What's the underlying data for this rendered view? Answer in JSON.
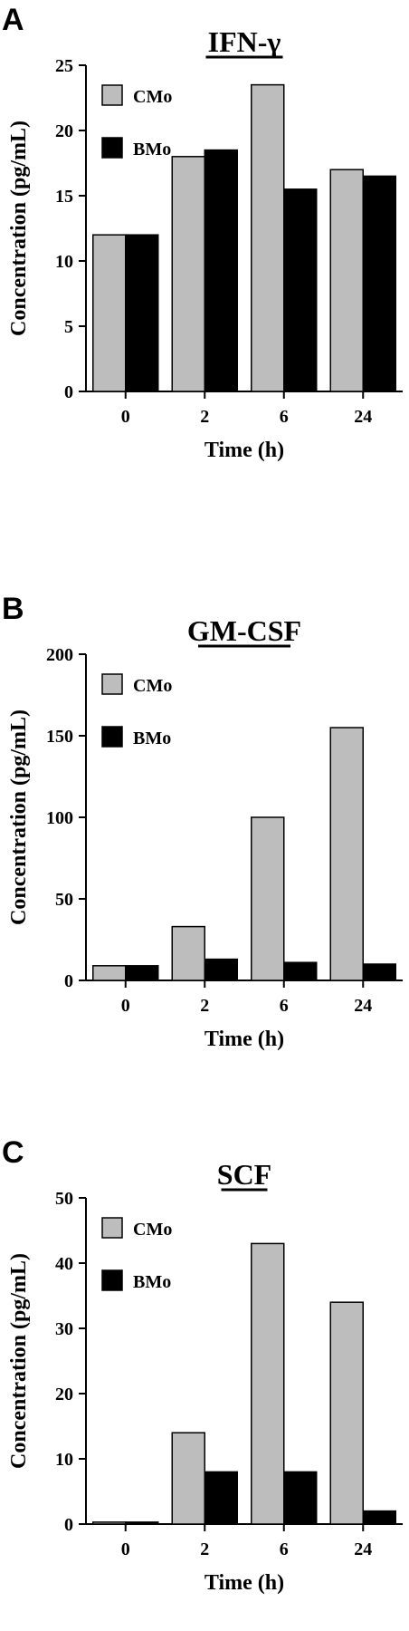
{
  "chart_data": [
    {
      "type": "bar",
      "panel": "A",
      "title": "IFN-γ",
      "xlabel": "Time (h)",
      "ylabel": "Concentration (pg/mL)",
      "categories": [
        "0",
        "2",
        "6",
        "24"
      ],
      "ylim": [
        0,
        25
      ],
      "yticks": [
        0,
        5,
        10,
        15,
        20,
        25
      ],
      "legend_position": "top-left",
      "series": [
        {
          "name": "CMo",
          "color": "#bdbdbd",
          "values": [
            12,
            18,
            23.5,
            17
          ]
        },
        {
          "name": "BMo",
          "color": "#000000",
          "values": [
            12,
            18.5,
            15.5,
            16.5
          ]
        }
      ]
    },
    {
      "type": "bar",
      "panel": "B",
      "title": "GM-CSF",
      "xlabel": "Time (h)",
      "ylabel": "Concentration (pg/mL)",
      "categories": [
        "0",
        "2",
        "6",
        "24"
      ],
      "ylim": [
        0,
        200
      ],
      "yticks": [
        0,
        50,
        100,
        150,
        200
      ],
      "legend_position": "top-left",
      "series": [
        {
          "name": "CMo",
          "color": "#bdbdbd",
          "values": [
            9,
            33,
            100,
            155
          ]
        },
        {
          "name": "BMo",
          "color": "#000000",
          "values": [
            9,
            13,
            11,
            10
          ]
        }
      ]
    },
    {
      "type": "bar",
      "panel": "C",
      "title": "SCF",
      "xlabel": "Time (h)",
      "ylabel": "Concentration (pg/mL)",
      "categories": [
        "0",
        "2",
        "6",
        "24"
      ],
      "ylim": [
        0,
        50
      ],
      "yticks": [
        0,
        10,
        20,
        30,
        40,
        50
      ],
      "legend_position": "top-left",
      "series": [
        {
          "name": "CMo",
          "color": "#bdbdbd",
          "values": [
            0.3,
            14,
            43,
            34
          ]
        },
        {
          "name": "BMo",
          "color": "#000000",
          "values": [
            0.3,
            8,
            8,
            2
          ]
        }
      ]
    }
  ]
}
